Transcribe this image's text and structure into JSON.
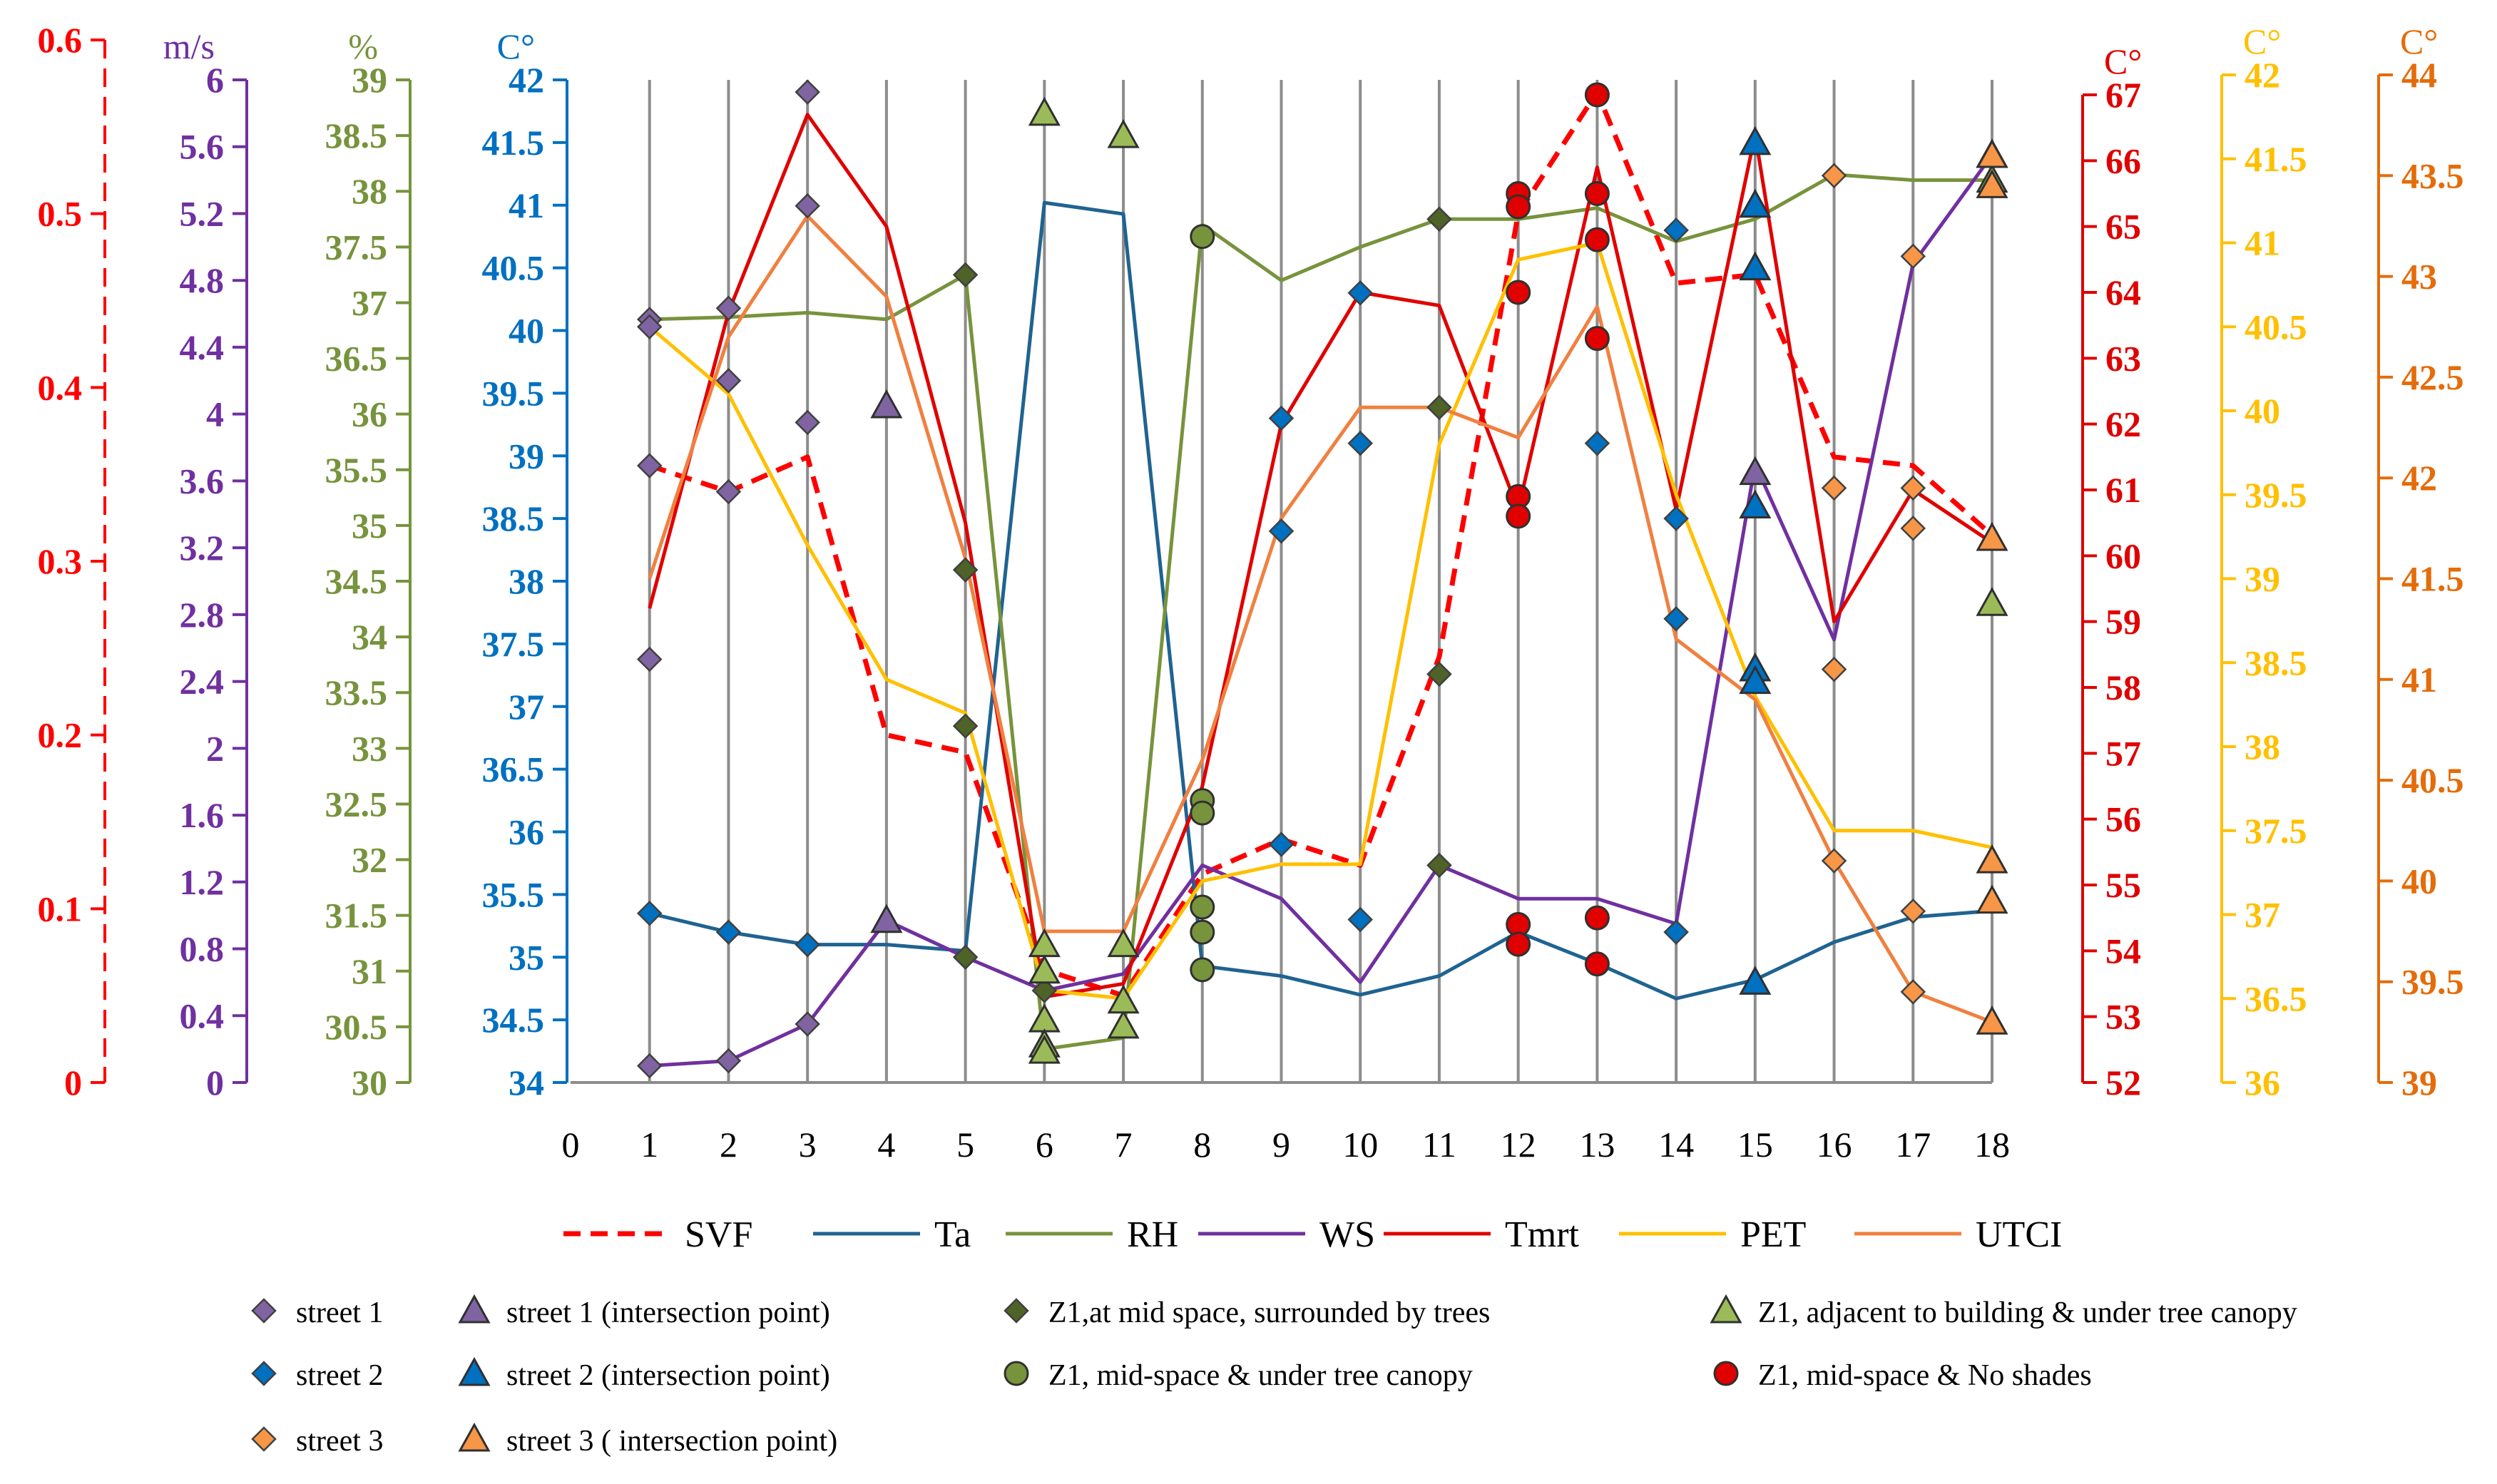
{
  "chart_data": {
    "type": "line",
    "x": [
      1,
      2,
      3,
      4,
      5,
      6,
      7,
      8,
      9,
      10,
      11,
      12,
      13,
      14,
      15,
      16,
      17,
      18
    ],
    "x_ticks": [
      "0",
      "1",
      "2",
      "3",
      "4",
      "5",
      "6",
      "7",
      "8",
      "9",
      "10",
      "11",
      "12",
      "13",
      "14",
      "15",
      "16",
      "17",
      "18"
    ],
    "xlim": [
      0,
      18
    ],
    "grid": "vertical",
    "legend_position": "bottom",
    "axes": [
      {
        "key": "svf",
        "unit": "",
        "color": "#ff0000",
        "ylim": [
          0,
          0.6
        ],
        "ticks": [
          "0",
          "0.1",
          "0.2",
          "0.3",
          "0.4",
          "0.5",
          "0.6"
        ]
      },
      {
        "key": "ws",
        "unit": "m/s",
        "color": "#7030a0",
        "ylim": [
          0,
          6
        ],
        "ticks": [
          "0",
          "0.4",
          "0.8",
          "1.2",
          "1.6",
          "2",
          "2.4",
          "2.8",
          "3.2",
          "3.6",
          "4",
          "4.4",
          "4.8",
          "5.2",
          "5.6",
          "6"
        ]
      },
      {
        "key": "rh",
        "unit": "%",
        "color": "#77933c",
        "ylim": [
          30,
          39
        ],
        "ticks": [
          "30",
          "30.5",
          "31",
          "31.5",
          "32",
          "32.5",
          "33",
          "33.5",
          "34",
          "34.5",
          "35",
          "35.5",
          "36",
          "36.5",
          "37",
          "37.5",
          "38",
          "38.5",
          "39"
        ]
      },
      {
        "key": "ta",
        "unit": "C°",
        "color": "#0070c0",
        "ylim": [
          34,
          42
        ],
        "ticks": [
          "34",
          "34.5",
          "35",
          "35.5",
          "36",
          "36.5",
          "37",
          "37.5",
          "38",
          "38.5",
          "39",
          "39.5",
          "40",
          "40.5",
          "41",
          "41.5",
          "42"
        ]
      },
      {
        "key": "tmrt",
        "unit": "C°",
        "color": "#e00000",
        "ylim": [
          52,
          67
        ],
        "ticks": [
          "52",
          "53",
          "54",
          "55",
          "56",
          "57",
          "58",
          "59",
          "60",
          "61",
          "62",
          "63",
          "64",
          "65",
          "66",
          "67"
        ]
      },
      {
        "key": "pet",
        "unit": "C°",
        "color": "#ffc000",
        "ylim": [
          36,
          42
        ],
        "ticks": [
          "36",
          "36.5",
          "37",
          "37.5",
          "38",
          "38.5",
          "39",
          "39.5",
          "40",
          "40.5",
          "41",
          "41.5",
          "42"
        ]
      },
      {
        "key": "utci",
        "unit": "C°",
        "color": "#e46c0a",
        "ylim": [
          39,
          44
        ],
        "ticks": [
          "39",
          "39.5",
          "40",
          "40.5",
          "41",
          "41.5",
          "42",
          "42.5",
          "43",
          "43.5",
          "44"
        ]
      }
    ],
    "series": [
      {
        "name": "SVF",
        "axis": "svf",
        "color": "#ff0000",
        "dashed": true,
        "values": [
          0.355,
          0.34,
          0.36,
          0.2,
          0.19,
          0.065,
          0.05,
          0.12,
          0.14,
          0.125,
          0.245,
          0.5,
          0.57,
          0.46,
          0.465,
          0.36,
          0.355,
          0.315
        ]
      },
      {
        "name": "Ta",
        "axis": "ta",
        "color": "#1f6391",
        "dashed": false,
        "values": [
          35.35,
          35.2,
          35.1,
          35.1,
          35.05,
          41.02,
          40.93,
          34.93,
          34.85,
          34.7,
          34.85,
          35.2,
          34.95,
          34.67,
          34.82,
          35.12,
          35.32,
          35.37
        ]
      },
      {
        "name": "RH",
        "axis": "rh",
        "color": "#77933c",
        "dashed": false,
        "values": [
          36.85,
          36.87,
          36.91,
          36.85,
          37.25,
          30.3,
          30.4,
          37.7,
          37.2,
          37.5,
          37.75,
          37.75,
          37.85,
          37.55,
          37.75,
          38.15,
          38.1,
          38.1
        ]
      },
      {
        "name": "WS",
        "axis": "ws",
        "color": "#7030a0",
        "dashed": false,
        "values": [
          0.1,
          0.13,
          0.35,
          0.97,
          0.75,
          0.55,
          0.65,
          1.3,
          1.1,
          0.6,
          1.3,
          1.1,
          1.1,
          0.95,
          3.7,
          2.65,
          4.9,
          5.55
        ]
      },
      {
        "name": "Tmrt",
        "axis": "tmrt",
        "color": "#e00000",
        "dashed": false,
        "values": [
          59.2,
          63.7,
          66.7,
          65,
          60.5,
          53.3,
          53.5,
          56.5,
          62,
          64,
          63.8,
          60.7,
          65.9,
          60.7,
          66.4,
          59,
          61,
          60.2
        ]
      },
      {
        "name": "PET",
        "axis": "pet",
        "color": "#ffc000",
        "dashed": false,
        "values": [
          40.5,
          40.1,
          39.2,
          38.4,
          38.2,
          36.55,
          36.5,
          37.2,
          37.3,
          37.3,
          39.8,
          40.9,
          41.0,
          39.5,
          38.3,
          37.5,
          37.5,
          37.4
        ]
      },
      {
        "name": "UTCI",
        "axis": "utci",
        "color": "#f08040",
        "dashed": false,
        "values": [
          41.5,
          42.7,
          43.3,
          42.9,
          41.6,
          39.75,
          39.75,
          40.6,
          41.8,
          42.35,
          42.35,
          42.2,
          42.85,
          41.2,
          40.9,
          40.1,
          39.45,
          39.3
        ]
      }
    ],
    "markers": [
      {
        "name": "street 1",
        "shape": "diamond",
        "color": "#8064a2",
        "points": [
          [
            1,
            "ws",
            0.1
          ],
          [
            1,
            "svf",
            0.355
          ],
          [
            1,
            "rh",
            36.85
          ],
          [
            1,
            "pet",
            40.5
          ],
          [
            1,
            "utci",
            41.1
          ],
          [
            2,
            "ws",
            0.13
          ],
          [
            2,
            "svf",
            0.34
          ],
          [
            2,
            "rh",
            36.95
          ],
          [
            2,
            "ws",
            4.2
          ],
          [
            3,
            "ws",
            0.35
          ],
          [
            3,
            "utci",
            43.35
          ],
          [
            3,
            "svf",
            0.57
          ],
          [
            3,
            "ws",
            3.95
          ]
        ]
      },
      {
        "name": "street 1 (intersection point)",
        "shape": "triangle",
        "color": "#8064a2",
        "points": [
          [
            4,
            "ws",
            0.97
          ],
          [
            4,
            "ws",
            4.05
          ],
          [
            15,
            "ws",
            3.65
          ],
          [
            18,
            "ws",
            5.55
          ]
        ]
      },
      {
        "name": "Z1,at mid space, surrounded by trees",
        "shape": "diamond",
        "color": "#4f6228",
        "points": [
          [
            5,
            "ws",
            0.75
          ],
          [
            5,
            "rh",
            37.25
          ],
          [
            5,
            "rh",
            33.2
          ],
          [
            5,
            "svf",
            0.295
          ],
          [
            6,
            "ws",
            0.55
          ],
          [
            11,
            "rh",
            37.75
          ],
          [
            11,
            "ws",
            1.3
          ],
          [
            11,
            "svf",
            0.235
          ],
          [
            11,
            "utci",
            42.35
          ]
        ]
      },
      {
        "name": "Z1, adjacent to building & under tree canopy",
        "shape": "triangle",
        "color": "#9bbb59",
        "points": [
          [
            6,
            "rh",
            38.7
          ],
          [
            6,
            "ta",
            35.1
          ],
          [
            6,
            "ta",
            34.5
          ],
          [
            6,
            "ta",
            34.3
          ],
          [
            6,
            "ta",
            34.25
          ],
          [
            6,
            "rh",
            31.0
          ],
          [
            7,
            "rh",
            38.5
          ],
          [
            7,
            "ta",
            35.1
          ],
          [
            7,
            "ta",
            34.45
          ],
          [
            7,
            "ta",
            34.65
          ],
          [
            18,
            "rh",
            38.1
          ],
          [
            18,
            "rh",
            34.3
          ]
        ]
      },
      {
        "name": "street 2",
        "shape": "diamond",
        "color": "#0070c0",
        "points": [
          [
            1,
            "ta",
            35.35
          ],
          [
            2,
            "ta",
            35.2
          ],
          [
            3,
            "ta",
            35.1
          ],
          [
            9,
            "ta",
            39.3
          ],
          [
            9,
            "ta",
            38.4
          ],
          [
            9,
            "ta",
            35.9
          ],
          [
            10,
            "ta",
            40.3
          ],
          [
            10,
            "ta",
            39.1
          ],
          [
            10,
            "ta",
            35.3
          ],
          [
            13,
            "ta",
            39.1
          ],
          [
            14,
            "ta",
            38.5
          ],
          [
            14,
            "ta",
            37.7
          ],
          [
            14,
            "ta",
            35.2
          ],
          [
            14,
            "ta",
            40.8
          ]
        ]
      },
      {
        "name": "street 2 (intersection point)",
        "shape": "triangle",
        "color": "#0070c0",
        "points": [
          [
            15,
            "ta",
            41.5
          ],
          [
            15,
            "ta",
            41.0
          ],
          [
            15,
            "ta",
            40.5
          ],
          [
            15,
            "ta",
            38.6
          ],
          [
            15,
            "ta",
            37.3
          ],
          [
            15,
            "ta",
            37.2
          ],
          [
            15,
            "ta",
            34.8
          ]
        ]
      },
      {
        "name": "Z1, mid-space & under tree canopy",
        "shape": "circle",
        "color": "#77933c",
        "points": [
          [
            8,
            "ta",
            40.75
          ],
          [
            8,
            "ta",
            36.25
          ],
          [
            8,
            "ta",
            36.15
          ],
          [
            8,
            "ta",
            35.4
          ],
          [
            8,
            "ta",
            35.2
          ],
          [
            8,
            "ta",
            34.9
          ]
        ]
      },
      {
        "name": "Z1, mid-space & No shades",
        "shape": "circle",
        "color": "#e00000",
        "points": [
          [
            12,
            "tmrt",
            65.5
          ],
          [
            12,
            "tmrt",
            65.3
          ],
          [
            12,
            "tmrt",
            64.0
          ],
          [
            12,
            "tmrt",
            60.9
          ],
          [
            12,
            "tmrt",
            60.6
          ],
          [
            12,
            "tmrt",
            54.4
          ],
          [
            12,
            "tmrt",
            54.1
          ],
          [
            13,
            "tmrt",
            67.0
          ],
          [
            13,
            "tmrt",
            65.5
          ],
          [
            13,
            "tmrt",
            64.8
          ],
          [
            13,
            "tmrt",
            63.3
          ],
          [
            13,
            "tmrt",
            54.5
          ],
          [
            13,
            "tmrt",
            53.8
          ]
        ]
      },
      {
        "name": "street 3",
        "shape": "diamond",
        "color": "#f79646",
        "points": [
          [
            16,
            "utci",
            40.1
          ],
          [
            16,
            "utci",
            41.05
          ],
          [
            16,
            "utci",
            41.95
          ],
          [
            16,
            "utci",
            43.5
          ],
          [
            17,
            "utci",
            41.95
          ],
          [
            17,
            "utci",
            41.75
          ],
          [
            17,
            "utci",
            43.1
          ],
          [
            17,
            "utci",
            39.45
          ],
          [
            17,
            "utci",
            39.85
          ]
        ]
      },
      {
        "name": "street 3 ( intersection point)",
        "shape": "triangle",
        "color": "#f79646",
        "points": [
          [
            18,
            "utci",
            43.6
          ],
          [
            18,
            "utci",
            43.45
          ],
          [
            18,
            "utci",
            41.7
          ],
          [
            18,
            "utci",
            40.1
          ],
          [
            18,
            "utci",
            39.9
          ],
          [
            18,
            "utci",
            39.3
          ]
        ]
      }
    ]
  },
  "legend_lines": [
    "SVF",
    "Ta",
    "RH",
    "WS",
    "Tmrt",
    "PET",
    "UTCI"
  ],
  "legend_markers": [
    "street 1",
    "street 1 (intersection point)",
    "Z1,at mid space, surrounded by trees",
    "Z1, adjacent to building & under tree canopy",
    "street 2",
    "street 2 (intersection point)",
    "Z1, mid-space & under tree canopy",
    "Z1, mid-space & No shades",
    "street 3",
    "street 3 ( intersection point)"
  ]
}
